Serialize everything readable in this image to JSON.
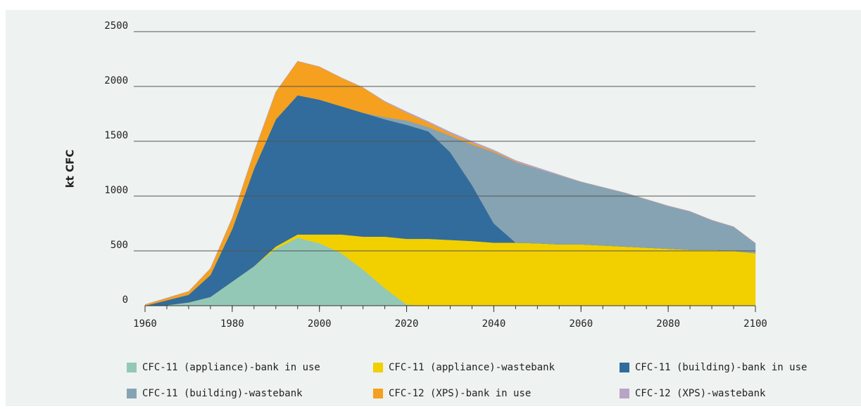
{
  "chart_data": {
    "type": "stacked_area",
    "y_label": "kt CFC",
    "x": [
      1960,
      1965,
      1970,
      1975,
      1980,
      1985,
      1990,
      1995,
      2000,
      2005,
      2010,
      2015,
      2020,
      2025,
      2030,
      2035,
      2040,
      2045,
      2050,
      2055,
      2060,
      2065,
      2070,
      2075,
      2080,
      2085,
      2090,
      2095,
      2100
    ],
    "xlim": [
      1960,
      2100
    ],
    "xticks": [
      1960,
      1980,
      2000,
      2020,
      2040,
      2060,
      2080,
      2100
    ],
    "ylim": [
      0,
      2500
    ],
    "yticks": [
      0,
      500,
      1000,
      1500,
      2000,
      2500
    ],
    "grid": true,
    "series": [
      {
        "name": "CFC-11 (appliance)-bank in use",
        "color": "#93c8b6",
        "values": [
          0,
          5,
          30,
          80,
          220,
          360,
          520,
          620,
          570,
          480,
          330,
          160,
          10,
          0,
          0,
          0,
          0,
          0,
          0,
          0,
          0,
          0,
          0,
          0,
          0,
          0,
          0,
          0,
          0
        ]
      },
      {
        "name": "CFC-11 (appliance)-wastebank",
        "color": "#f2d000",
        "values": [
          0,
          0,
          0,
          0,
          0,
          0,
          20,
          30,
          80,
          170,
          300,
          470,
          600,
          610,
          600,
          590,
          575,
          575,
          570,
          560,
          560,
          550,
          540,
          530,
          520,
          510,
          510,
          500,
          480
        ]
      },
      {
        "name": "CFC-11 (building)-bank in use",
        "color": "#316c9c",
        "values": [
          0,
          45,
          70,
          200,
          480,
          890,
          1160,
          1270,
          1230,
          1170,
          1130,
          1070,
          1040,
          980,
          800,
          510,
          175,
          0,
          0,
          0,
          0,
          0,
          0,
          0,
          0,
          0,
          0,
          0,
          0
        ]
      },
      {
        "name": "CFC-11 (building)-wastebank",
        "color": "#86a3b3",
        "values": [
          0,
          0,
          0,
          0,
          0,
          0,
          0,
          0,
          0,
          0,
          0,
          20,
          40,
          40,
          150,
          370,
          650,
          735,
          680,
          630,
          570,
          530,
          490,
          440,
          390,
          350,
          270,
          220,
          90
        ]
      },
      {
        "name": "CFC-12 (XPS)-bank in use",
        "color": "#f5a01e",
        "values": [
          10,
          20,
          30,
          60,
          100,
          150,
          250,
          310,
          300,
          260,
          230,
          140,
          70,
          40,
          20,
          15,
          10,
          5,
          0,
          0,
          0,
          0,
          0,
          0,
          0,
          0,
          0,
          0,
          0
        ]
      },
      {
        "name": "CFC-12 (XPS)-wastebank",
        "color": "#b9a3c6",
        "values": [
          0,
          0,
          0,
          0,
          0,
          0,
          0,
          0,
          0,
          0,
          0,
          5,
          10,
          10,
          15,
          15,
          10,
          10,
          10,
          5,
          0,
          0,
          0,
          0,
          0,
          0,
          0,
          0,
          0
        ]
      }
    ]
  }
}
